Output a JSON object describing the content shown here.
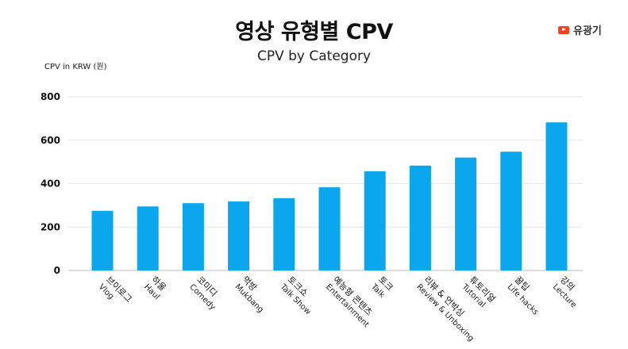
{
  "brand": {
    "icon": "play-icon",
    "label": "유광기",
    "color": "#ff3d1f"
  },
  "chart_data": {
    "type": "bar",
    "title": "영상 유형별 CPV",
    "subtitle": "CPV by Category",
    "ylabel": "CPV in KRW (원)",
    "xlabel": "",
    "ylim": [
      0,
      800
    ],
    "yticks": [
      0,
      200,
      400,
      600,
      800
    ],
    "grid": true,
    "bar_color": "#0aa6ee",
    "categories": [
      {
        "ko": "브이로그",
        "en": "Vlog"
      },
      {
        "ko": "하울",
        "en": "Haul"
      },
      {
        "ko": "코미디",
        "en": "Comedy"
      },
      {
        "ko": "먹방",
        "en": "Mukbang"
      },
      {
        "ko": "토크쇼",
        "en": "Talk Show"
      },
      {
        "ko": "예능형 콘텐츠",
        "en": "Entertainment"
      },
      {
        "ko": "토크",
        "en": "Talk"
      },
      {
        "ko": "리뷰 & 언박싱",
        "en": "Review & Unboxing"
      },
      {
        "ko": "튜토리얼",
        "en": "Tutorial"
      },
      {
        "ko": "꿀팁",
        "en": "Life hacks"
      },
      {
        "ko": "강의",
        "en": "Lecture"
      }
    ],
    "values": [
      275,
      295,
      310,
      318,
      333,
      383,
      457,
      483,
      520,
      547,
      682
    ]
  }
}
